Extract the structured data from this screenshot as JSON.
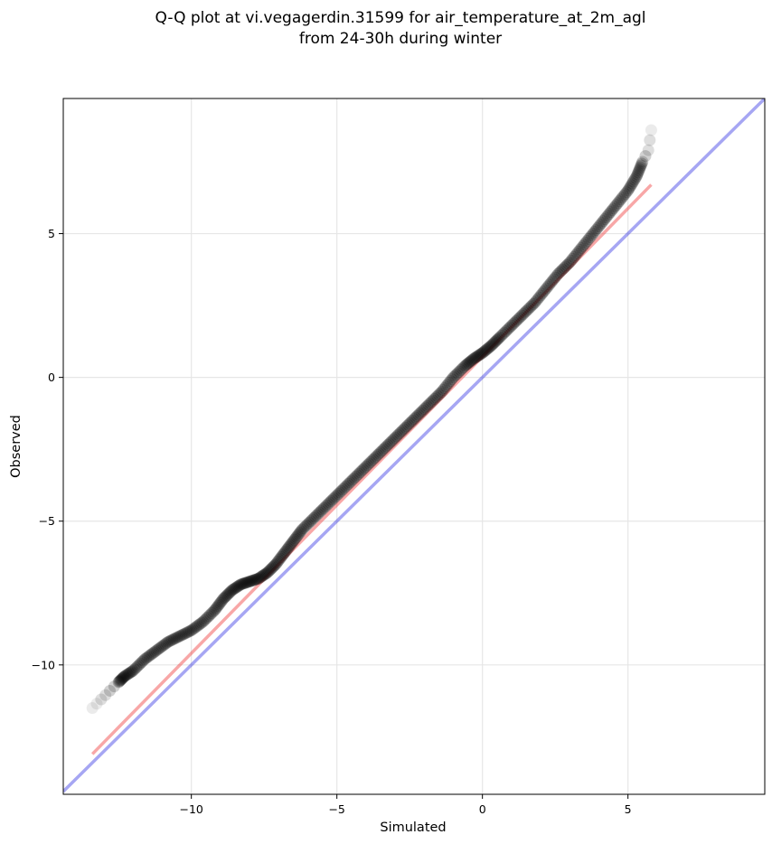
{
  "chart_data": {
    "type": "scatter",
    "title_lines": [
      "Q-Q plot at vi.vegagerdin.31599 for air_temperature_at_2m_agl",
      "from 24-30h during winter"
    ],
    "xlabel": "Simulated",
    "ylabel": "Observed",
    "xlim": [
      -14.4,
      9.7
    ],
    "ylim": [
      -14.5,
      9.7
    ],
    "xticks": [
      -10,
      -5,
      0,
      5
    ],
    "yticks": [
      -10,
      -5,
      0,
      5
    ],
    "xtick_labels": [
      "−10",
      "−5",
      "0",
      "5"
    ],
    "ytick_labels": [
      "−10",
      "−5",
      "0",
      "5"
    ],
    "grid": true,
    "identity_line": {
      "x": [
        -14.4,
        9.7
      ],
      "y": [
        -14.4,
        9.7
      ],
      "color": "#0000dd"
    },
    "fit_line": {
      "x": [
        -13.4,
        5.8
      ],
      "y": [
        -13.1,
        6.7
      ],
      "color": "#ee2222"
    },
    "point_color": "#000000",
    "quantiles": {
      "x": [
        -13.4,
        -13.1,
        -12.8,
        -12.5,
        -12.3,
        -12.0,
        -11.6,
        -11.2,
        -10.8,
        -10.4,
        -10.0,
        -9.6,
        -9.2,
        -8.9,
        -8.6,
        -8.3,
        -8.0,
        -7.7,
        -7.4,
        -7.1,
        -6.8,
        -6.5,
        -6.2,
        -5.8,
        -5.4,
        -5.0,
        -4.6,
        -4.2,
        -3.8,
        -3.4,
        -3.0,
        -2.6,
        -2.2,
        -1.8,
        -1.4,
        -1.0,
        -0.6,
        -0.3,
        0.0,
        0.3,
        0.6,
        1.0,
        1.4,
        1.8,
        2.2,
        2.6,
        3.0,
        3.4,
        3.8,
        4.2,
        4.6,
        5.0,
        5.3,
        5.5,
        5.7,
        5.8
      ],
      "y": [
        -11.5,
        -11.2,
        -10.9,
        -10.6,
        -10.4,
        -10.2,
        -9.8,
        -9.5,
        -9.2,
        -9.0,
        -8.8,
        -8.5,
        -8.1,
        -7.7,
        -7.4,
        -7.2,
        -7.1,
        -7.0,
        -6.8,
        -6.5,
        -6.1,
        -5.7,
        -5.3,
        -4.9,
        -4.5,
        -4.1,
        -3.7,
        -3.3,
        -2.9,
        -2.5,
        -2.1,
        -1.7,
        -1.3,
        -0.9,
        -0.5,
        0.0,
        0.4,
        0.65,
        0.85,
        1.1,
        1.4,
        1.8,
        2.2,
        2.6,
        3.1,
        3.6,
        4.0,
        4.5,
        5.0,
        5.5,
        6.0,
        6.5,
        7.0,
        7.5,
        7.9,
        8.6
      ]
    }
  }
}
